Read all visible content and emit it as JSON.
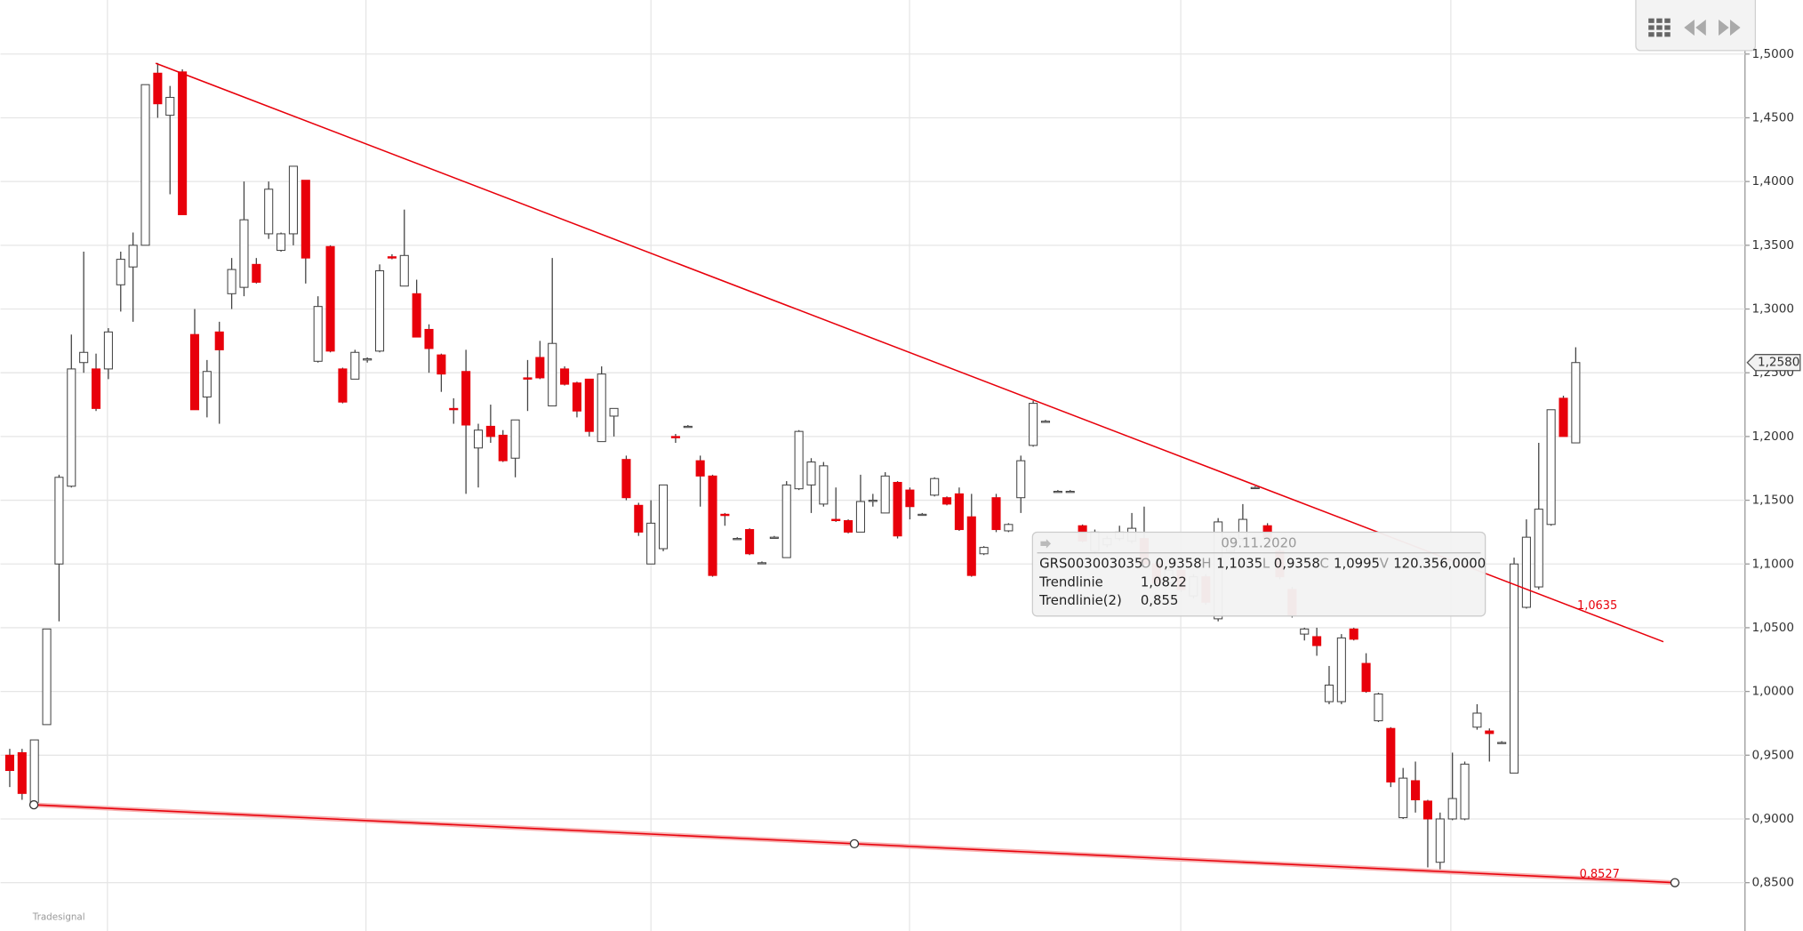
{
  "chart_data": {
    "type": "candlestick",
    "ylim": [
      0.8121,
      1.5424
    ],
    "yticks": [
      {
        "value": 1.5,
        "label": "1,5000"
      },
      {
        "value": 1.45,
        "label": "1,4500"
      },
      {
        "value": 1.4,
        "label": "1,4000"
      },
      {
        "value": 1.35,
        "label": "1,3500"
      },
      {
        "value": 1.3,
        "label": "1,3000"
      },
      {
        "value": 1.25,
        "label": "1,2500"
      },
      {
        "value": 1.2,
        "label": "1,2000"
      },
      {
        "value": 1.15,
        "label": "1,1500"
      },
      {
        "value": 1.1,
        "label": "1,1000"
      },
      {
        "value": 1.05,
        "label": "1,0500"
      },
      {
        "value": 1.0,
        "label": "1,0000"
      },
      {
        "value": 0.95,
        "label": "0,9500"
      },
      {
        "value": 0.9,
        "label": "0,9000"
      },
      {
        "value": 0.85,
        "label": "0,8500"
      }
    ],
    "grid": true,
    "up_color": "#ffffff",
    "down_color": "#e8000b",
    "trend_color": "#e8000b",
    "open": [
      0.95,
      0.952,
      0.911,
      0.974,
      1.1,
      1.161,
      1.258,
      1.253,
      1.253,
      1.319,
      1.333,
      1.35,
      1.485,
      1.452,
      1.486,
      1.28,
      1.231,
      1.282,
      1.312,
      1.317,
      1.335,
      1.359,
      1.346,
      1.359,
      1.401,
      1.259,
      1.349,
      1.253,
      1.245,
      1.26,
      1.267,
      1.341,
      1.318,
      1.312,
      1.284,
      1.264,
      1.222,
      1.251,
      1.191,
      1.208,
      1.201,
      1.183,
      1.246,
      1.262,
      1.224,
      1.253,
      1.242,
      1.245,
      1.196,
      1.216,
      1.182,
      1.146,
      1.1,
      1.112,
      1.2,
      1.208,
      1.181,
      1.169,
      1.139,
      1.12,
      1.127,
      1.101,
      1.121,
      1.105,
      1.159,
      1.162,
      1.147,
      1.135,
      1.134,
      1.125,
      1.15,
      1.14,
      1.164,
      1.158,
      1.139,
      1.154,
      1.152,
      1.155,
      1.137,
      1.108,
      1.152,
      1.126,
      1.152,
      1.193,
      1.212,
      1.157,
      1.157,
      1.13,
      1.11,
      1.115,
      1.12,
      1.118,
      1.12,
      1.1,
      1.085,
      1.095,
      1.075,
      1.09,
      1.057,
      1.11,
      1.12,
      1.16,
      1.13,
      1.11,
      1.08,
      1.045,
      1.043,
      0.992,
      0.992,
      1.049,
      1.022,
      0.977,
      0.971,
      0.901,
      0.93,
      0.914,
      0.866,
      0.9,
      0.9,
      0.972,
      0.969,
      0.96,
      0.936,
      1.066,
      1.082,
      1.131,
      1.23,
      1.195
    ],
    "high": [
      0.955,
      0.955,
      0.962,
      1.049,
      1.17,
      1.28,
      1.345,
      1.265,
      1.285,
      1.345,
      1.36,
      1.476,
      1.493,
      1.475,
      1.488,
      1.3,
      1.26,
      1.29,
      1.34,
      1.4,
      1.34,
      1.4,
      1.36,
      1.412,
      1.401,
      1.31,
      1.35,
      1.254,
      1.268,
      1.262,
      1.335,
      1.343,
      1.378,
      1.323,
      1.288,
      1.265,
      1.23,
      1.268,
      1.21,
      1.225,
      1.205,
      1.213,
      1.26,
      1.275,
      1.34,
      1.255,
      1.243,
      1.245,
      1.255,
      1.222,
      1.185,
      1.148,
      1.15,
      1.162,
      1.202,
      1.209,
      1.185,
      1.17,
      1.14,
      1.121,
      1.128,
      1.102,
      1.122,
      1.165,
      1.205,
      1.183,
      1.18,
      1.16,
      1.135,
      1.17,
      1.155,
      1.172,
      1.165,
      1.16,
      1.14,
      1.168,
      1.153,
      1.16,
      1.155,
      1.114,
      1.155,
      1.132,
      1.185,
      1.228,
      1.213,
      1.158,
      1.158,
      1.131,
      1.127,
      1.122,
      1.13,
      1.14,
      1.145,
      1.102,
      1.097,
      1.097,
      1.092,
      1.092,
      1.136,
      1.122,
      1.147,
      1.161,
      1.132,
      1.112,
      1.082,
      1.05,
      1.05,
      1.02,
      1.045,
      1.05,
      1.03,
      0.999,
      0.972,
      0.94,
      0.945,
      0.915,
      0.905,
      0.952,
      0.945,
      0.99,
      0.971,
      0.961,
      1.105,
      1.135,
      1.195,
      1.221,
      1.232,
      1.27
    ],
    "low": [
      0.925,
      0.915,
      0.91,
      0.974,
      1.055,
      1.16,
      1.25,
      1.22,
      1.245,
      1.298,
      1.29,
      1.35,
      1.45,
      1.39,
      1.374,
      1.221,
      1.215,
      1.21,
      1.3,
      1.31,
      1.32,
      1.355,
      1.345,
      1.35,
      1.32,
      1.258,
      1.266,
      1.226,
      1.245,
      1.258,
      1.266,
      1.339,
      1.318,
      1.278,
      1.25,
      1.235,
      1.21,
      1.155,
      1.16,
      1.195,
      1.18,
      1.168,
      1.22,
      1.245,
      1.224,
      1.24,
      1.215,
      1.2,
      1.196,
      1.2,
      1.15,
      1.122,
      1.1,
      1.11,
      1.195,
      1.207,
      1.145,
      1.09,
      1.13,
      1.119,
      1.107,
      1.1,
      1.12,
      1.105,
      1.158,
      1.14,
      1.145,
      1.133,
      1.124,
      1.125,
      1.145,
      1.14,
      1.12,
      1.135,
      1.138,
      1.153,
      1.146,
      1.126,
      1.09,
      1.107,
      1.125,
      1.125,
      1.14,
      1.192,
      1.211,
      1.156,
      1.156,
      1.117,
      1.108,
      1.113,
      1.118,
      1.116,
      1.098,
      1.083,
      1.083,
      1.078,
      1.073,
      1.068,
      1.055,
      1.108,
      1.118,
      1.159,
      1.118,
      1.088,
      1.058,
      1.04,
      1.028,
      0.99,
      0.99,
      1.04,
      0.999,
      0.976,
      0.925,
      0.9,
      0.905,
      0.862,
      0.858,
      0.899,
      0.899,
      0.97,
      0.945,
      0.959,
      0.936,
      1.065,
      1.08,
      1.13,
      1.2,
      1.195
    ],
    "close": [
      0.938,
      0.92,
      0.962,
      1.049,
      1.168,
      1.253,
      1.266,
      1.222,
      1.282,
      1.339,
      1.35,
      1.476,
      1.461,
      1.466,
      1.374,
      1.221,
      1.251,
      1.268,
      1.331,
      1.37,
      1.321,
      1.394,
      1.359,
      1.412,
      1.34,
      1.302,
      1.267,
      1.227,
      1.266,
      1.261,
      1.33,
      1.34,
      1.342,
      1.278,
      1.269,
      1.249,
      1.221,
      1.209,
      1.205,
      1.2,
      1.181,
      1.213,
      1.245,
      1.246,
      1.273,
      1.241,
      1.22,
      1.204,
      1.249,
      1.222,
      1.152,
      1.125,
      1.132,
      1.162,
      1.199,
      1.208,
      1.169,
      1.091,
      1.138,
      1.12,
      1.108,
      1.101,
      1.121,
      1.162,
      1.204,
      1.18,
      1.177,
      1.134,
      1.125,
      1.149,
      1.15,
      1.169,
      1.122,
      1.145,
      1.139,
      1.167,
      1.147,
      1.127,
      1.091,
      1.113,
      1.127,
      1.131,
      1.181,
      1.226,
      1.212,
      1.157,
      1.157,
      1.118,
      1.125,
      1.12,
      1.125,
      1.128,
      1.1,
      1.085,
      1.095,
      1.08,
      1.09,
      1.07,
      1.133,
      1.12,
      1.135,
      1.16,
      1.12,
      1.09,
      1.06,
      1.049,
      1.036,
      1.005,
      1.042,
      1.041,
      1.0,
      0.998,
      0.929,
      0.932,
      0.915,
      0.9,
      0.9,
      0.916,
      0.943,
      0.983,
      0.967,
      0.96,
      1.1,
      1.121,
      1.143,
      1.221,
      1.2,
      1.258
    ],
    "last_price": {
      "value": 1.258,
      "label": "1,2580"
    },
    "trendlines": [
      {
        "start": 1.4928,
        "end": 1.039,
        "value_label": {
          "value": 1.0635,
          "label": "1,0635"
        }
      },
      {
        "start": 0.9111,
        "end": 0.85,
        "value_label": {
          "value": 0.8527,
          "label": "0,8527"
        }
      }
    ],
    "tooltip": {
      "date": "09.11.2020",
      "symbol": "GRS003003035",
      "fields": [
        {
          "key": "O",
          "value": "0,9358"
        },
        {
          "key": "H",
          "value": "1,1035"
        },
        {
          "key": "L",
          "value": "0,9358"
        },
        {
          "key": "C",
          "value": "1,0995"
        },
        {
          "key": "V",
          "value": "120.356,0000"
        }
      ],
      "rows": [
        {
          "name": "Trendlinie",
          "value": "1,0822"
        },
        {
          "name": "Trendlinie(2)",
          "value": "0,855"
        }
      ]
    },
    "logo": "Tradesignal"
  }
}
